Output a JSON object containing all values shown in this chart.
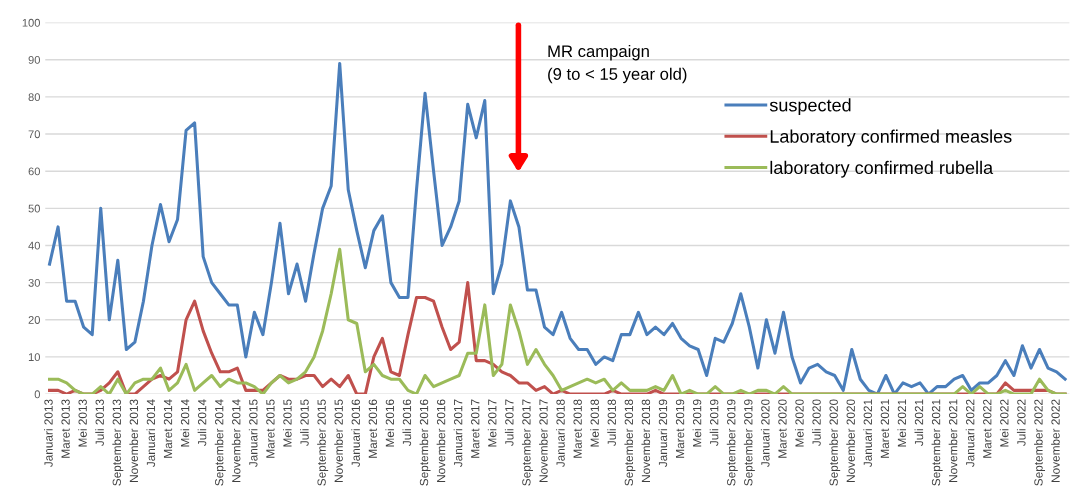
{
  "chart_data": {
    "type": "line",
    "categories": [
      "Januari 2013",
      null,
      "Maret 2013",
      null,
      "Mei 2013",
      null,
      "Juli 2013",
      null,
      "September 2013",
      null,
      "November 2013",
      null,
      "Januari 2014",
      null,
      "Maret 2014",
      null,
      "Mei 2014",
      null,
      "Juli 2014",
      null,
      "September 2014",
      null,
      "November 2014",
      null,
      "Januari 2015",
      null,
      "Maret 2015",
      null,
      "Mei 2015",
      null,
      "Juli 2015",
      null,
      "September 2015",
      null,
      "November 2015",
      null,
      "Januari 2016",
      null,
      "Maret 2016",
      null,
      "Mei 2016",
      null,
      "Juli 2016",
      null,
      "September 2016",
      null,
      "November 2016",
      null,
      "Januari 2017",
      null,
      "Maret 2017",
      null,
      "Mei 2017",
      null,
      "Juli 2017",
      null,
      "September 2017",
      null,
      "November 2017",
      null,
      "Januari 2018",
      null,
      "Maret 2018",
      null,
      "Mei 2018",
      null,
      "Juli 2018",
      null,
      "September 2018",
      null,
      "November 2018",
      null,
      "Januari 2019",
      null,
      "Maret 2019",
      null,
      "Mei 2019",
      null,
      "Juli 2019",
      null,
      "September 2019",
      null,
      "September 2019",
      null,
      "Januari 2020",
      null,
      "Maret 2020",
      null,
      "Mei 2020",
      null,
      "Juli 2020",
      null,
      "September 2020",
      null,
      "November 2020",
      null,
      "Januari 2021",
      null,
      "Maret 2021",
      null,
      "Mei 2021",
      null,
      "Juli 2021",
      null,
      "September 2021",
      null,
      "November 2021",
      null,
      "Januari 2022",
      null,
      "Maret 2022",
      null,
      "Mei 2022",
      null,
      "Juli 2022",
      null,
      "September 2022",
      null,
      "November 2022",
      null
    ],
    "series": [
      {
        "name": "suspected",
        "color": "#4a7ebb",
        "values": [
          35,
          45,
          25,
          25,
          18,
          16,
          50,
          20,
          36,
          12,
          14,
          25,
          40,
          51,
          41,
          47,
          71,
          73,
          37,
          30,
          27,
          24,
          24,
          10,
          22,
          16,
          30,
          46,
          27,
          35,
          25,
          38,
          50,
          56,
          89,
          55,
          44,
          34,
          44,
          48,
          30,
          26,
          26,
          55,
          81,
          60,
          40,
          45,
          52,
          78,
          69,
          79,
          27,
          35,
          52,
          45,
          28,
          28,
          18,
          16,
          22,
          15,
          12,
          12,
          8,
          10,
          9,
          16,
          16,
          22,
          16,
          18,
          16,
          19,
          15,
          13,
          12,
          5,
          15,
          14,
          19,
          27,
          18,
          7,
          20,
          11,
          22,
          10,
          3,
          7,
          8,
          6,
          5,
          1,
          12,
          4,
          1,
          0,
          5,
          0,
          3,
          2,
          3,
          0,
          2,
          2,
          4,
          5,
          1,
          3,
          3,
          5,
          9,
          5,
          13,
          7,
          12,
          7,
          6,
          4
        ]
      },
      {
        "name": "Laboratory confirmed measles",
        "color": "#c0504d",
        "values": [
          1,
          1,
          0,
          1,
          0,
          0,
          1,
          3,
          6,
          0,
          0,
          2,
          4,
          5,
          4,
          6,
          20,
          25,
          17,
          11,
          6,
          6,
          7,
          1,
          1,
          1,
          3,
          5,
          4,
          4,
          5,
          5,
          2,
          4,
          2,
          5,
          0,
          0,
          10,
          15,
          6,
          5,
          16,
          26,
          26,
          25,
          18,
          12,
          14,
          30,
          9,
          9,
          8,
          6,
          5,
          3,
          3,
          1,
          2,
          0,
          1,
          0,
          0,
          0,
          0,
          0,
          1,
          0,
          0,
          0,
          0,
          1,
          0,
          0,
          0,
          0,
          0,
          0,
          0,
          0,
          0,
          0,
          0,
          0,
          0,
          0,
          0,
          0,
          0,
          0,
          0,
          0,
          0,
          0,
          0,
          0,
          0,
          0,
          0,
          0,
          0,
          0,
          0,
          0,
          0,
          0,
          0,
          0,
          0,
          0,
          0,
          0,
          3,
          1,
          1,
          1,
          1,
          1,
          0,
          0
        ]
      },
      {
        "name": "laboratory confirmed rubella",
        "color": "#9bbb59",
        "values": [
          4,
          4,
          3,
          1,
          0,
          0,
          2,
          0,
          4,
          0,
          3,
          4,
          4,
          7,
          1,
          3,
          8,
          1,
          3,
          5,
          2,
          4,
          3,
          3,
          2,
          0,
          3,
          5,
          3,
          4,
          6,
          10,
          17,
          27,
          39,
          20,
          19,
          6,
          8,
          5,
          4,
          4,
          1,
          0,
          5,
          2,
          3,
          4,
          5,
          11,
          11,
          24,
          5,
          8,
          24,
          17,
          8,
          12,
          8,
          5,
          1,
          2,
          3,
          4,
          3,
          4,
          1,
          3,
          1,
          1,
          1,
          2,
          1,
          5,
          0,
          1,
          0,
          0,
          2,
          0,
          0,
          1,
          0,
          1,
          1,
          0,
          2,
          0,
          0,
          0,
          0,
          0,
          0,
          0,
          0,
          0,
          0,
          0,
          0,
          0,
          0,
          0,
          0,
          0,
          0,
          0,
          0,
          2,
          0,
          2,
          0,
          0,
          1,
          0,
          0,
          0,
          4,
          1,
          0,
          0
        ]
      }
    ],
    "ylim": [
      0,
      100
    ],
    "yticks": [
      0,
      10,
      20,
      30,
      40,
      50,
      60,
      70,
      80,
      90,
      100
    ],
    "grid": "y",
    "legend": "top right",
    "line_style": "solid",
    "marker": "none",
    "annotations": [
      "MR campaign\n(9 to < 15 year old)"
    ]
  }
}
